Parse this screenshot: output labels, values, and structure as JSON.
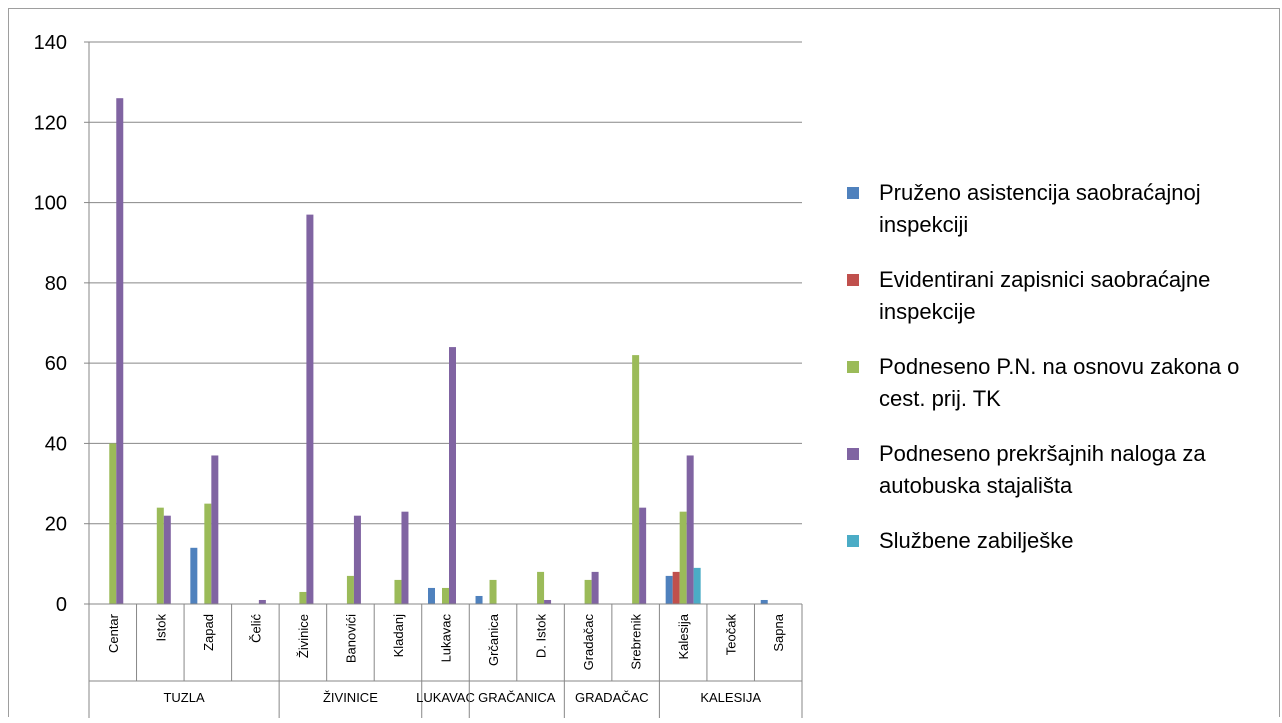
{
  "chart_data": {
    "type": "bar",
    "ylim": [
      0,
      140
    ],
    "yticks": [
      0,
      20,
      40,
      60,
      80,
      100,
      120,
      140
    ],
    "grid": true,
    "legend_position": "right",
    "categories": [
      "Centar",
      "Istok",
      "Zapad",
      "Čelić",
      "Živinice",
      "Banovići",
      "Kladanj",
      "Lukavac",
      "Grčanica",
      "D. Istok",
      "Gradačac",
      "Srebrenik",
      "Kalesija",
      "Teočak",
      "Sapna"
    ],
    "groups": [
      {
        "label": "TUZLA",
        "categories": [
          "Centar",
          "Istok",
          "Zapad",
          "Čelić"
        ]
      },
      {
        "label": "ŽIVINICE",
        "categories": [
          "Živinice",
          "Banovići",
          "Kladanj"
        ]
      },
      {
        "label": "LUKAVAC",
        "categories": [
          "Lukavac"
        ]
      },
      {
        "label": "GRAČANICA",
        "categories": [
          "Grčanica",
          "D. Istok"
        ]
      },
      {
        "label": "GRADAČAC",
        "categories": [
          "Gradačac",
          "Srebrenik"
        ]
      },
      {
        "label": "KALESIJA",
        "categories": [
          "Kalesija",
          "Teočak",
          "Sapna"
        ]
      }
    ],
    "series": [
      {
        "name": "Pruženo asistencija saobraćajnoj inspekciji",
        "color": "#4f81bd",
        "values": [
          0,
          0,
          14,
          0,
          0,
          0,
          0,
          4,
          2,
          0,
          0,
          0,
          7,
          0,
          1
        ]
      },
      {
        "name": "Evidentirani zapisnici saobraćajne inspekcije",
        "color": "#c0504d",
        "values": [
          0,
          0,
          0,
          0,
          0,
          0,
          0,
          0,
          0,
          0,
          0,
          0,
          8,
          0,
          0
        ]
      },
      {
        "name": "Podneseno P.N. na osnovu zakona o cest. prij. TK",
        "color": "#9bbb59",
        "values": [
          40,
          24,
          25,
          0,
          3,
          7,
          6,
          4,
          6,
          8,
          6,
          62,
          23,
          0,
          0
        ]
      },
      {
        "name": "Podneseno prekršajnih naloga za autobuska stajališta",
        "color": "#8064a2",
        "values": [
          126,
          22,
          37,
          1,
          97,
          22,
          23,
          64,
          0,
          1,
          8,
          24,
          37,
          0,
          0
        ]
      },
      {
        "name": "Službene zabilješke",
        "color": "#4bacc6",
        "values": [
          0,
          0,
          0,
          0,
          0,
          0,
          0,
          0,
          0,
          0,
          0,
          0,
          9,
          0,
          0
        ]
      }
    ]
  },
  "legend": {
    "items": [
      {
        "label": "Pruženo asistencija saobraćajnoj inspekciji",
        "color": "#4f81bd"
      },
      {
        "label": "Evidentirani zapisnici saobraćajne inspekcije",
        "color": "#c0504d"
      },
      {
        "label": "Podneseno P.N. na osnovu zakona o cest. prij. TK",
        "color": "#9bbb59"
      },
      {
        "label": "Podneseno prekršajnih naloga za autobuska stajališta",
        "color": "#8064a2"
      },
      {
        "label": "Službene zabilješke",
        "color": "#4bacc6"
      }
    ]
  }
}
